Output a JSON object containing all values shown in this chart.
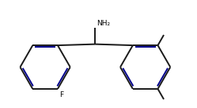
{
  "bg_color": "#ffffff",
  "line_color": "#1a1a1a",
  "double_bond_color": "#00008B",
  "text_color": "#000000",
  "NH2_label": "NH₂",
  "F_label": "F",
  "line_width": 1.4,
  "font_size_label": 6.5,
  "figsize": [
    2.49,
    1.36
  ],
  "dpi": 100
}
